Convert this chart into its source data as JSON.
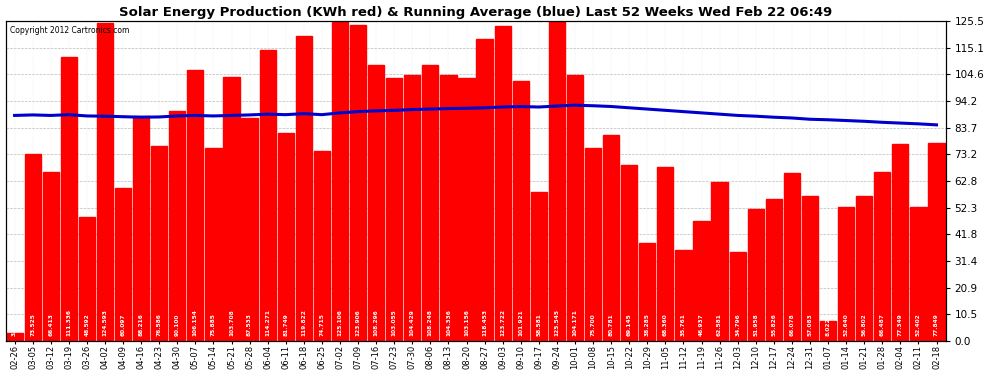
{
  "title": "Solar Energy Production (KWh red) & Running Average (blue) Last 52 Weeks Wed Feb 22 06:49",
  "copyright": "Copyright 2012 Cartronics.com",
  "bar_color": "#ff0000",
  "avg_line_color": "#0000cc",
  "background_color": "#ffffff",
  "grid_color": "#bbbbbb",
  "ylabel_right": [
    "0.0",
    "10.5",
    "20.9",
    "31.4",
    "41.8",
    "52.3",
    "62.8",
    "73.2",
    "83.7",
    "94.2",
    "104.6",
    "115.1",
    "125.5"
  ],
  "ylim": [
    0,
    125.5
  ],
  "categories": [
    "02-26",
    "03-05",
    "03-12",
    "03-19",
    "03-26",
    "04-02",
    "04-09",
    "04-16",
    "04-23",
    "04-30",
    "05-07",
    "05-14",
    "05-21",
    "05-28",
    "06-04",
    "06-11",
    "06-18",
    "06-25",
    "07-02",
    "07-09",
    "07-16",
    "07-23",
    "07-30",
    "08-06",
    "08-13",
    "08-20",
    "08-27",
    "09-03",
    "09-10",
    "09-17",
    "09-24",
    "10-01",
    "10-08",
    "10-15",
    "10-22",
    "10-29",
    "11-05",
    "11-12",
    "11-19",
    "11-26",
    "12-03",
    "12-10",
    "12-17",
    "12-24",
    "12-31",
    "01-07",
    "01-14",
    "01-21",
    "01-28",
    "02-04",
    "02-11",
    "02-18"
  ],
  "values": [
    3.152,
    73.525,
    66.413,
    111.336,
    48.592,
    124.593,
    60.097,
    88.216,
    76.586,
    90.1,
    106.154,
    75.885,
    103.708,
    87.533,
    114.271,
    81.749,
    119.822,
    74.715,
    125.106,
    123.906,
    108.296,
    103.055,
    104.429,
    108.248,
    104.336,
    103.156,
    118.453,
    123.722,
    101.921,
    58.581,
    125.545,
    104.171,
    75.7,
    80.781,
    69.145,
    38.285,
    68.36,
    35.761,
    46.937,
    62.581,
    34.796,
    51.958,
    55.826,
    66.078,
    57.083,
    8.022,
    52.64,
    56.802,
    66.487,
    77.349,
    52.402,
    77.849
  ],
  "running_avg": [
    88.5,
    88.7,
    88.5,
    88.8,
    88.3,
    88.2,
    88.0,
    87.8,
    87.9,
    88.3,
    88.5,
    88.3,
    88.5,
    88.7,
    89.0,
    88.8,
    89.2,
    88.8,
    89.5,
    90.0,
    90.3,
    90.5,
    90.8,
    91.0,
    91.2,
    91.3,
    91.5,
    91.8,
    92.0,
    91.8,
    92.2,
    92.5,
    92.3,
    92.0,
    91.5,
    91.0,
    90.5,
    90.0,
    89.5,
    89.0,
    88.5,
    88.2,
    87.8,
    87.5,
    87.0,
    86.8,
    86.5,
    86.2,
    85.8,
    85.5,
    85.2,
    84.8
  ]
}
